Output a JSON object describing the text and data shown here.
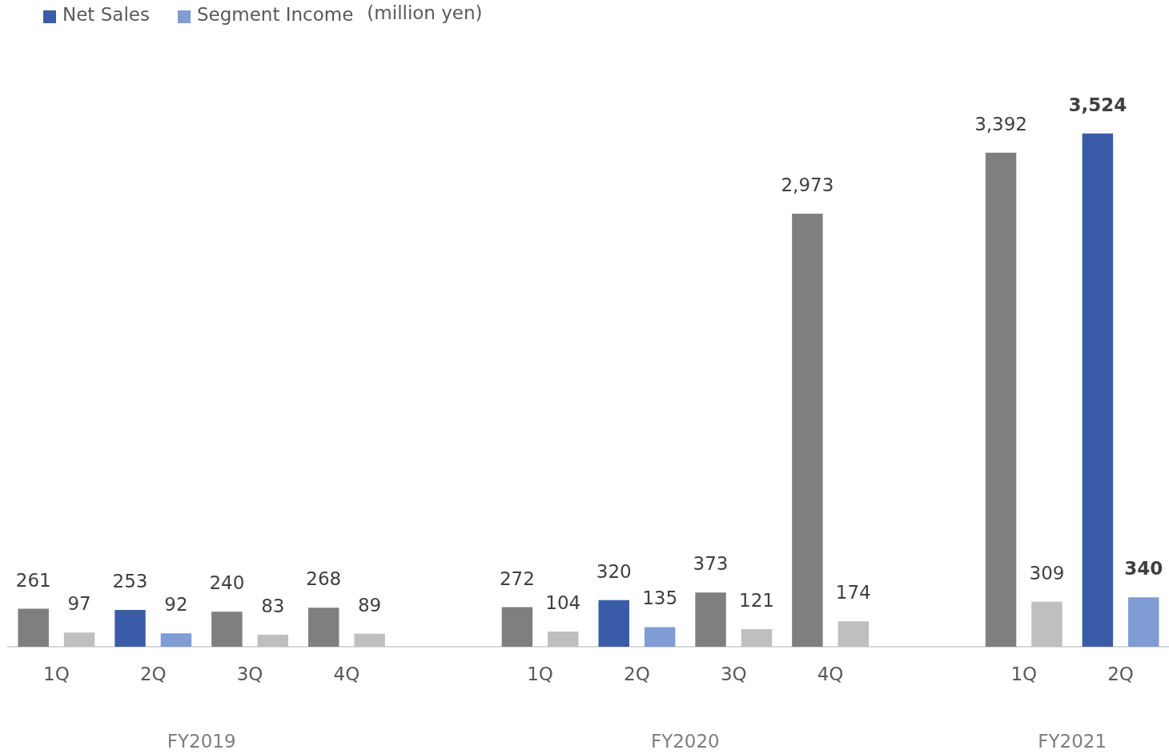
{
  "chart_data": {
    "type": "bar",
    "categories": [
      "1Q",
      "2Q",
      "3Q",
      "4Q",
      null,
      "1Q",
      "2Q",
      "3Q",
      "4Q",
      null,
      "1Q",
      "2Q"
    ],
    "series": [
      {
        "name": "Net Sales",
        "color": "#3a5ca8",
        "colors": [
          "#7f7f7f",
          "#3a5ca8",
          "#7f7f7f",
          "#7f7f7f",
          null,
          "#7f7f7f",
          "#3a5ca8",
          "#7f7f7f",
          "#7f7f7f",
          null,
          "#7f7f7f",
          "#3a5ca8"
        ],
        "values": [
          261,
          253,
          240,
          268,
          null,
          272,
          320,
          373,
          2973,
          null,
          3392,
          3524
        ],
        "value_labels": [
          "261",
          "253",
          "240",
          "268",
          null,
          "272",
          "320",
          "373",
          "2,973",
          null,
          "3,392",
          "3,524"
        ]
      },
      {
        "name": "Segment Income",
        "color": "#7f9cd5",
        "colors": [
          "#bfbfbf",
          "#7f9cd5",
          "#bfbfbf",
          "#bfbfbf",
          null,
          "#bfbfbf",
          "#7f9cd5",
          "#bfbfbf",
          "#bfbfbf",
          null,
          "#bfbfbf",
          "#7f9cd5"
        ],
        "values": [
          97,
          92,
          83,
          89,
          null,
          104,
          135,
          121,
          174,
          null,
          309,
          340
        ],
        "value_labels": [
          "97",
          "92",
          "83",
          "89",
          null,
          "104",
          "135",
          "121",
          "174",
          null,
          "309",
          "340"
        ]
      }
    ],
    "annotations": [
      "FY2019",
      "FY2020",
      "FY2021",
      "(million yen)"
    ],
    "legend": "top left"
  }
}
